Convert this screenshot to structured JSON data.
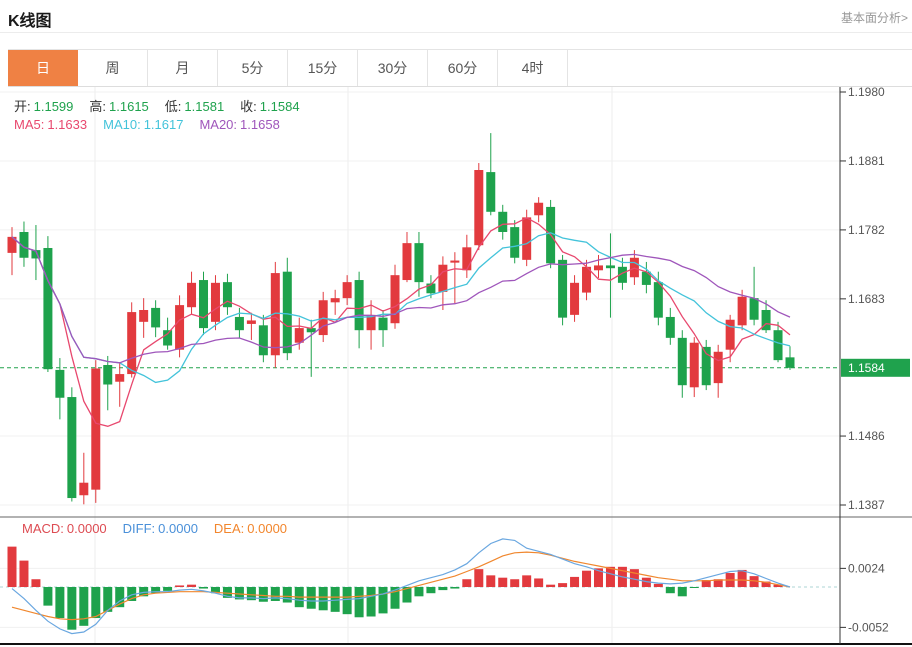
{
  "header": {
    "title": "K线图",
    "link_label": "基本面分析>"
  },
  "tabs": {
    "items": [
      "日",
      "周",
      "月",
      "5分",
      "15分",
      "30分",
      "60分",
      "4时"
    ],
    "active_index": 0
  },
  "legend_ohlc": {
    "items": [
      {
        "label": "开:",
        "value": "1.1599"
      },
      {
        "label": "高:",
        "value": "1.1615"
      },
      {
        "label": "低:",
        "value": "1.1581"
      },
      {
        "label": "收:",
        "value": "1.1584"
      }
    ],
    "value_color": "#1fa24d",
    "label_color": "#333333"
  },
  "legend_ma": {
    "items": [
      {
        "label": "MA5:",
        "value": "1.1633",
        "color": "#e8486e"
      },
      {
        "label": "MA10:",
        "value": "1.1617",
        "color": "#43c3da"
      },
      {
        "label": "MA20:",
        "value": "1.1658",
        "color": "#9f56bb"
      }
    ]
  },
  "legend_macd": {
    "items": [
      {
        "label": "MACD:",
        "value": "0.0000",
        "color": "#dd4b52"
      },
      {
        "label": "DIFF:",
        "value": "0.0000",
        "color": "#4a90d9"
      },
      {
        "label": "DEA:",
        "value": "0.0000",
        "color": "#f2862d"
      }
    ]
  },
  "colors": {
    "up": "#e23a3e",
    "down": "#1ea24c",
    "ma5": "#e8486e",
    "ma10": "#43c3da",
    "ma20": "#9f56bb",
    "diff_line": "#6aa7e0",
    "dea_line": "#f0872e",
    "tag_bg": "#1fa24d",
    "dashed_price": "#21a24b",
    "tab_active_bg": "#ef8144",
    "axis_text": "#555555",
    "grid": "#f0f0f0",
    "vgrid": "#ececec",
    "macd_zero_dash": "#aed4d4"
  },
  "chart_data": {
    "type": "candlestick+macd",
    "title": "K线图",
    "main": {
      "ylim": [
        1.1387,
        1.198
      ],
      "price_ticks": [
        1.198,
        1.1881,
        1.1782,
        1.1683,
        1.1486,
        1.1387
      ],
      "last_price": 1.1584,
      "last_price_label": "1.1584",
      "ma_periods": [
        5,
        10,
        20
      ],
      "candles_format": [
        "open",
        "high",
        "low",
        "close"
      ],
      "candles": [
        [
          1.1749,
          1.1786,
          1.1717,
          1.1772
        ],
        [
          1.1779,
          1.1794,
          1.1729,
          1.1742
        ],
        [
          1.1753,
          1.1789,
          1.171,
          1.1741
        ],
        [
          1.1756,
          1.1773,
          1.1578,
          1.1582
        ],
        [
          1.1581,
          1.1598,
          1.151,
          1.1541
        ],
        [
          1.1542,
          1.1556,
          1.1392,
          1.1397
        ],
        [
          1.1401,
          1.1462,
          1.1388,
          1.1419
        ],
        [
          1.1409,
          1.1595,
          1.139,
          1.1583
        ],
        [
          1.1588,
          1.1601,
          1.1523,
          1.156
        ],
        [
          1.1564,
          1.1592,
          1.1528,
          1.1575
        ],
        [
          1.1575,
          1.1678,
          1.157,
          1.1664
        ],
        [
          1.165,
          1.1684,
          1.1627,
          1.1667
        ],
        [
          1.167,
          1.1681,
          1.1628,
          1.1642
        ],
        [
          1.1638,
          1.1656,
          1.161,
          1.1616
        ],
        [
          1.161,
          1.1688,
          1.1599,
          1.1674
        ],
        [
          1.1671,
          1.1722,
          1.166,
          1.1706
        ],
        [
          1.171,
          1.1722,
          1.1631,
          1.1641
        ],
        [
          1.165,
          1.1717,
          1.1638,
          1.1706
        ],
        [
          1.1707,
          1.1719,
          1.166,
          1.1671
        ],
        [
          1.1657,
          1.167,
          1.1627,
          1.1638
        ],
        [
          1.1647,
          1.1663,
          1.1624,
          1.1652
        ],
        [
          1.1645,
          1.166,
          1.1592,
          1.1602
        ],
        [
          1.1602,
          1.1736,
          1.1584,
          1.172
        ],
        [
          1.1722,
          1.1742,
          1.1595,
          1.1605
        ],
        [
          1.162,
          1.1656,
          1.161,
          1.1641
        ],
        [
          1.1641,
          1.1653,
          1.1571,
          1.1635
        ],
        [
          1.1631,
          1.1693,
          1.1621,
          1.1681
        ],
        [
          1.1678,
          1.1696,
          1.166,
          1.1684
        ],
        [
          1.1684,
          1.1717,
          1.1674,
          1.1707
        ],
        [
          1.171,
          1.1722,
          1.1612,
          1.1638
        ],
        [
          1.1638,
          1.1681,
          1.161,
          1.166
        ],
        [
          1.1656,
          1.1667,
          1.1614,
          1.1638
        ],
        [
          1.1648,
          1.1732,
          1.164,
          1.1717
        ],
        [
          1.171,
          1.1779,
          1.1707,
          1.1763
        ],
        [
          1.1763,
          1.1779,
          1.1686,
          1.1707
        ],
        [
          1.1705,
          1.1717,
          1.1684,
          1.1691
        ],
        [
          1.1693,
          1.1744,
          1.1667,
          1.1732
        ],
        [
          1.1735,
          1.175,
          1.1677,
          1.1738
        ],
        [
          1.1724,
          1.1775,
          1.1713,
          1.1757
        ],
        [
          1.176,
          1.1878,
          1.1753,
          1.1868
        ],
        [
          1.1865,
          1.1921,
          1.1803,
          1.1808
        ],
        [
          1.1808,
          1.1818,
          1.1768,
          1.1779
        ],
        [
          1.1786,
          1.1796,
          1.1734,
          1.1742
        ],
        [
          1.1739,
          1.1811,
          1.173,
          1.18
        ],
        [
          1.1803,
          1.1829,
          1.1793,
          1.1821
        ],
        [
          1.1815,
          1.1825,
          1.1727,
          1.1734
        ],
        [
          1.1739,
          1.1746,
          1.1645,
          1.1656
        ],
        [
          1.166,
          1.1717,
          1.165,
          1.1706
        ],
        [
          1.1692,
          1.1739,
          1.1681,
          1.1729
        ],
        [
          1.1724,
          1.1746,
          1.1713,
          1.1731
        ],
        [
          1.1731,
          1.1777,
          1.1656,
          1.1727
        ],
        [
          1.1729,
          1.1742,
          1.1696,
          1.1706
        ],
        [
          1.1714,
          1.1753,
          1.1703,
          1.1742
        ],
        [
          1.1722,
          1.1736,
          1.1691,
          1.1703
        ],
        [
          1.1707,
          1.1722,
          1.1645,
          1.1656
        ],
        [
          1.1657,
          1.167,
          1.1617,
          1.1627
        ],
        [
          1.1627,
          1.1638,
          1.1541,
          1.1559
        ],
        [
          1.1556,
          1.1628,
          1.1542,
          1.162
        ],
        [
          1.1614,
          1.1624,
          1.1552,
          1.1559
        ],
        [
          1.1562,
          1.1617,
          1.1541,
          1.1607
        ],
        [
          1.161,
          1.166,
          1.1592,
          1.1653
        ],
        [
          1.1645,
          1.1696,
          1.1638,
          1.1686
        ],
        [
          1.1684,
          1.1729,
          1.1645,
          1.1653
        ],
        [
          1.1667,
          1.1681,
          1.1634,
          1.1638
        ],
        [
          1.1638,
          1.165,
          1.1592,
          1.1595
        ],
        [
          1.1599,
          1.1615,
          1.1581,
          1.1584
        ]
      ]
    },
    "macd": {
      "ticks": [
        0.0024,
        -0.0052
      ],
      "histogram": [
        0.0052,
        0.0034,
        0.001,
        -0.0024,
        -0.004,
        -0.0055,
        -0.005,
        -0.004,
        -0.0032,
        -0.0026,
        -0.0018,
        -0.0012,
        -0.0008,
        -0.0005,
        0.0002,
        0.0003,
        -0.0002,
        -0.0008,
        -0.0014,
        -0.0016,
        -0.0017,
        -0.0019,
        -0.0018,
        -0.002,
        -0.0026,
        -0.0028,
        -0.003,
        -0.0032,
        -0.0035,
        -0.0039,
        -0.0038,
        -0.0034,
        -0.0028,
        -0.002,
        -0.0012,
        -0.0008,
        -0.0004,
        -0.0002,
        0.001,
        0.0023,
        0.0015,
        0.0012,
        0.001,
        0.0015,
        0.0011,
        0.0003,
        0.0005,
        0.0013,
        0.0021,
        0.0024,
        0.0026,
        0.0026,
        0.0023,
        0.0012,
        0.0004,
        -0.0008,
        -0.0012,
        -0.0001,
        0.0009,
        0.001,
        0.0018,
        0.0022,
        0.0014,
        0.0007,
        0.0003,
        0.0
      ],
      "diff": [
        -0.0002,
        -0.0015,
        -0.003,
        -0.0044,
        -0.0054,
        -0.006,
        -0.0058,
        -0.0048,
        -0.003,
        -0.0018,
        -0.001,
        -0.0007,
        -0.0006,
        -0.0006,
        -0.0004,
        -0.0003,
        -0.0005,
        -0.0008,
        -0.0012,
        -0.0014,
        -0.0014,
        -0.0015,
        -0.0014,
        -0.0015,
        -0.0017,
        -0.0018,
        -0.0018,
        -0.0017,
        -0.0016,
        -0.0015,
        -0.0012,
        -0.0009,
        -0.0004,
        0.0002,
        0.0008,
        0.0012,
        0.0016,
        0.0022,
        0.003,
        0.0044,
        0.0056,
        0.0062,
        0.006,
        0.005,
        0.0046,
        0.0042,
        0.0036,
        0.003,
        0.0026,
        0.0021,
        0.0017,
        0.0013,
        0.001,
        0.0007,
        0.0005,
        0.0004,
        0.0005,
        0.0008,
        0.0012,
        0.0016,
        0.002,
        0.0021,
        0.0017,
        0.0011,
        0.0005,
        0.0
      ],
      "dea": [
        -0.0026,
        -0.003,
        -0.0034,
        -0.0038,
        -0.0041,
        -0.0042,
        -0.0041,
        -0.0038,
        -0.003,
        -0.0022,
        -0.0015,
        -0.001,
        -0.0008,
        -0.0007,
        -0.0006,
        -0.0006,
        -0.0006,
        -0.0007,
        -0.0008,
        -0.0009,
        -0.001,
        -0.0011,
        -0.0012,
        -0.0012,
        -0.0013,
        -0.0013,
        -0.0013,
        -0.0013,
        -0.0013,
        -0.0012,
        -0.0011,
        -0.0009,
        -0.0006,
        -0.0002,
        0.0002,
        0.0006,
        0.001,
        0.0014,
        0.002,
        0.0026,
        0.0033,
        0.004,
        0.0044,
        0.0045,
        0.0044,
        0.0041,
        0.0037,
        0.0033,
        0.003,
        0.0027,
        0.0024,
        0.0021,
        0.0018,
        0.0015,
        0.0012,
        0.001,
        0.0008,
        0.0008,
        0.0008,
        0.0009,
        0.0009,
        0.0009,
        0.0008,
        0.0006,
        0.0003,
        0.0
      ]
    }
  }
}
